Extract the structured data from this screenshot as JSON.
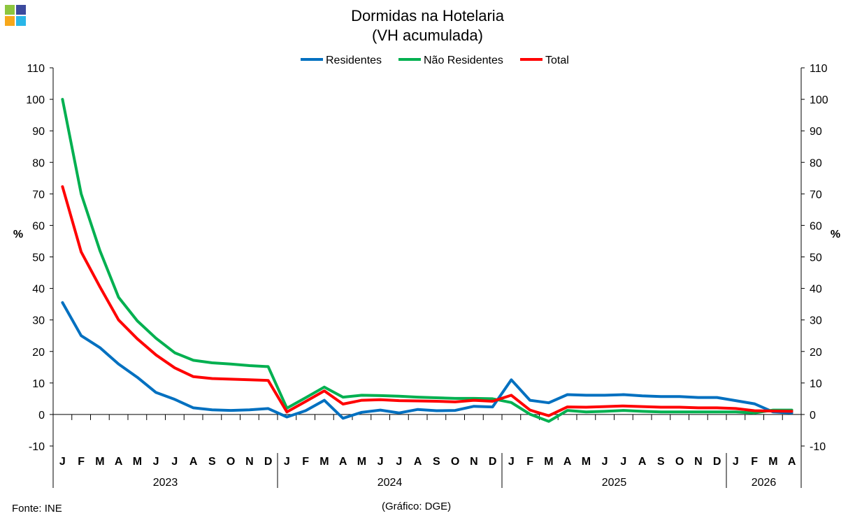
{
  "title": "Dormidas na Hotelaria",
  "subtitle": "(VH acumulada)",
  "source": "Fonte: INE",
  "credit": "(Gráfico: DGE)",
  "logo_colors": [
    "#8dc63f",
    "#3c4a9e",
    "#f7a81b",
    "#29b6e8"
  ],
  "chart_data": {
    "type": "line",
    "ylabel": "%",
    "y2label": "%",
    "ylim": [
      -10,
      110
    ],
    "yticks": [
      -10,
      0,
      10,
      20,
      30,
      40,
      50,
      60,
      70,
      80,
      90,
      100,
      110
    ],
    "grid": false,
    "legend_position": "top-center",
    "months": [
      "J",
      "F",
      "M",
      "A",
      "M",
      "J",
      "J",
      "A",
      "S",
      "O",
      "N",
      "D",
      "J",
      "F",
      "M",
      "A",
      "M",
      "J",
      "J",
      "A",
      "S",
      "O",
      "N",
      "D",
      "J",
      "F",
      "M",
      "A",
      "M",
      "J",
      "J",
      "A",
      "S",
      "O",
      "N",
      "D",
      "J",
      "F",
      "M",
      "A"
    ],
    "years": [
      {
        "label": "2023",
        "months": 12
      },
      {
        "label": "2024",
        "months": 12
      },
      {
        "label": "2025",
        "months": 12
      },
      {
        "label": "2026",
        "months": 4
      }
    ],
    "series": [
      {
        "name": "Residentes",
        "color": "#0070c0",
        "values": [
          35.5,
          25,
          21.2,
          16,
          11.8,
          7,
          4.8,
          2.1,
          1.5,
          1.3,
          1.5,
          1.9,
          -0.8,
          1.2,
          4.5,
          -1.2,
          0.7,
          1.4,
          0.5,
          1.6,
          1.2,
          1.3,
          2.6,
          2.4,
          11,
          4.5,
          3.7,
          6.3,
          6.1,
          6.1,
          6.3,
          5.9,
          5.7,
          5.7,
          5.4,
          5.4,
          4.4,
          3.4,
          0.8,
          0.5
        ]
      },
      {
        "name": "Não Residentes",
        "color": "#00b050",
        "values": [
          100,
          70,
          52,
          37.2,
          29.7,
          24.2,
          19.6,
          17.2,
          16.4,
          16,
          15.5,
          15.2,
          2,
          5.3,
          8.7,
          5.5,
          6.1,
          6,
          5.8,
          5.5,
          5.3,
          5.1,
          5.1,
          5,
          3.8,
          0.1,
          -2.2,
          1.3,
          0.8,
          1,
          1.3,
          1,
          0.8,
          0.8,
          0.8,
          0.8,
          0.8,
          0.5,
          1.4,
          1.4
        ]
      },
      {
        "name": "Total",
        "color": "#ff0000",
        "values": [
          72.3,
          51.6,
          40.5,
          30,
          24,
          18.9,
          14.8,
          12,
          11.4,
          11.2,
          11,
          10.8,
          0.8,
          4.1,
          7.5,
          3.3,
          4.5,
          4.7,
          4.4,
          4.3,
          4.2,
          4,
          4.5,
          4.2,
          6.1,
          1.4,
          -0.4,
          2.4,
          2.3,
          2.5,
          2.7,
          2.5,
          2.3,
          2.3,
          2.1,
          2.1,
          1.9,
          1.2,
          1.1,
          1
        ]
      }
    ]
  }
}
